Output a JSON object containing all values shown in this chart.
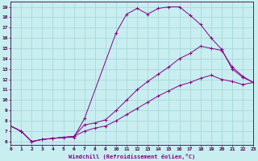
{
  "xlabel": "Windchill (Refroidissement éolien,°C)",
  "bg_color": "#c8eef0",
  "grid_color": "#a8d8dc",
  "line_color": "#880088",
  "xlim": [
    0,
    23
  ],
  "ylim": [
    5.7,
    19.5
  ],
  "xticks": [
    0,
    1,
    2,
    3,
    4,
    5,
    6,
    7,
    8,
    9,
    10,
    11,
    12,
    13,
    14,
    15,
    16,
    17,
    18,
    19,
    20,
    21,
    22,
    23
  ],
  "yticks": [
    6,
    7,
    8,
    9,
    10,
    11,
    12,
    13,
    14,
    15,
    16,
    17,
    18,
    19
  ],
  "curve1_x": [
    0,
    1,
    2,
    3,
    4,
    5,
    6,
    7,
    10,
    11,
    12,
    13,
    14,
    15,
    16,
    17,
    18,
    19,
    20,
    21,
    22,
    23
  ],
  "curve1_y": [
    7.5,
    7.0,
    6.0,
    6.2,
    6.3,
    6.4,
    6.4,
    8.2,
    16.5,
    18.3,
    18.85,
    18.3,
    18.85,
    19.0,
    19.0,
    18.2,
    17.3,
    16.0,
    14.9,
    13.0,
    12.2,
    11.7
  ],
  "curve2_x": [
    0,
    1,
    2,
    3,
    4,
    5,
    6,
    7,
    8,
    9,
    10,
    11,
    12,
    13,
    14,
    15,
    16,
    17,
    18,
    19,
    20,
    21,
    22,
    23
  ],
  "curve2_y": [
    7.5,
    7.0,
    6.0,
    6.2,
    6.3,
    6.4,
    6.5,
    7.6,
    7.8,
    8.1,
    9.0,
    10.0,
    11.0,
    11.8,
    12.5,
    13.2,
    14.0,
    14.5,
    15.2,
    15.0,
    14.8,
    13.2,
    12.3,
    11.7
  ],
  "curve3_x": [
    0,
    1,
    2,
    3,
    4,
    5,
    6,
    7,
    8,
    9,
    10,
    11,
    12,
    13,
    14,
    15,
    16,
    17,
    18,
    19,
    20,
    21,
    22,
    23
  ],
  "curve3_y": [
    7.5,
    7.0,
    6.0,
    6.2,
    6.3,
    6.4,
    6.5,
    7.0,
    7.3,
    7.5,
    8.0,
    8.6,
    9.2,
    9.8,
    10.4,
    10.9,
    11.4,
    11.7,
    12.1,
    12.4,
    12.0,
    11.8,
    11.5,
    11.7
  ]
}
